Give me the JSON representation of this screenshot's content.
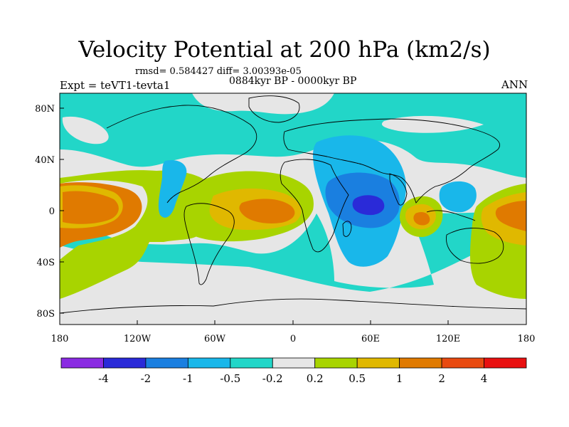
{
  "title": "Velocity Potential at 200 hPa (km2/s)",
  "stats": "rmsd= 0.584427  diff= 3.00393e-05",
  "period": "0884kyr BP - 0000kyr BP",
  "expt": "Expt = teVT1-tevta1",
  "season": "ANN",
  "lat_labels": [
    "80N",
    "40N",
    "0",
    "40S",
    "80S"
  ],
  "lon_labels": [
    "180",
    "120W",
    "60W",
    "0",
    "60E",
    "120E",
    "180"
  ],
  "colorbar": {
    "labels": [
      "-4",
      "-2",
      "-1",
      "-0.5",
      "-0.2",
      "0.2",
      "0.5",
      "1",
      "2",
      "4"
    ],
    "colors": [
      "#8a2be2",
      "#2a2ad8",
      "#1a7fe0",
      "#19b7ea",
      "#22d6c8",
      "#e6e6e6",
      "#a8d400",
      "#e0b800",
      "#e07a00",
      "#e84a10",
      "#e81010"
    ]
  },
  "palette": {
    "land_outline": "#000000",
    "background": "#e8e8e8"
  }
}
